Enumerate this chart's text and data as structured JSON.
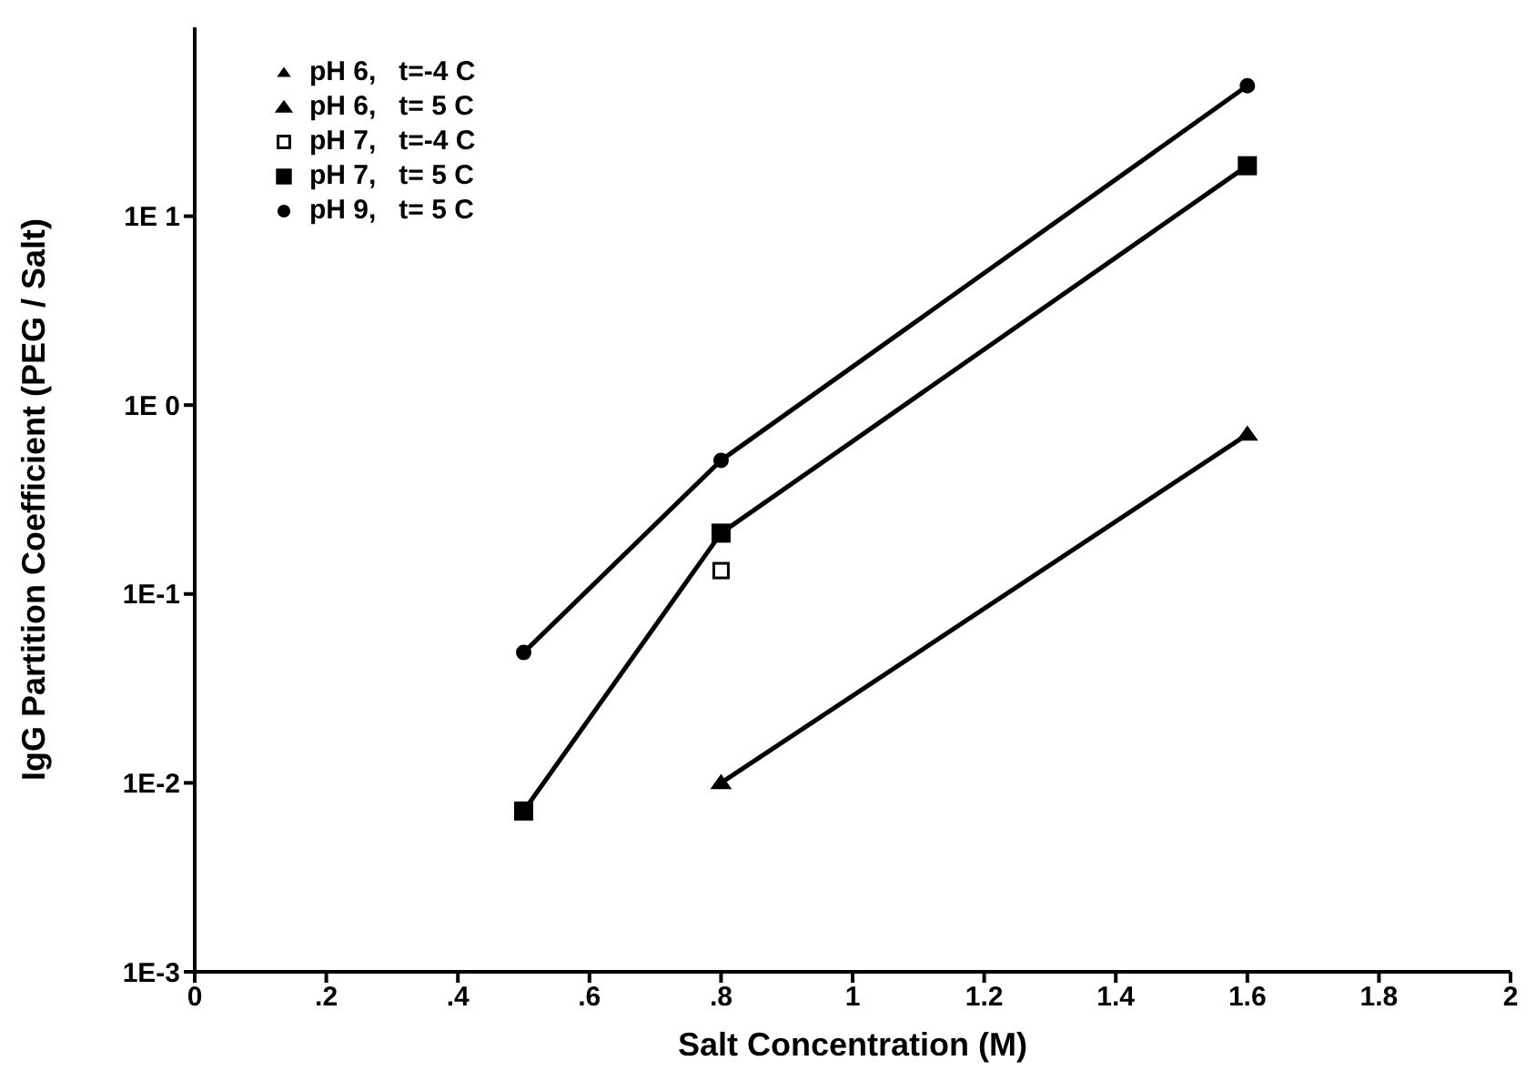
{
  "chart_data": {
    "type": "line",
    "xlabel": "Salt Concentration (M)",
    "ylabel": "IgG Partition Coefficient (PEG / Salt)",
    "log": "y",
    "grid": false,
    "legend": "top left",
    "line_style": "solid",
    "xlim": [
      0,
      2
    ],
    "xticks": [
      0,
      {
        "value": 0.2,
        "label": ".2"
      },
      {
        "value": 0.4,
        "label": ".4"
      },
      {
        "value": 0.6,
        "label": ".6"
      },
      {
        "value": 0.8,
        "label": ".8"
      },
      1,
      1.2,
      1.4,
      1.6,
      1.8,
      2
    ],
    "ylim": [
      0.001,
      100
    ],
    "yticks": [
      {
        "value": 0.001,
        "label": "1E-3"
      },
      {
        "value": 0.01,
        "label": "1E-2"
      },
      {
        "value": 0.1,
        "label": "1E-1"
      },
      {
        "value": 1,
        "label": "1E 0"
      },
      {
        "value": 10,
        "label": "1E 1"
      }
    ],
    "series": [
      {
        "name": "pH 6,   t=-4 C",
        "color": "#000000",
        "marker": "triangle"
      },
      {
        "name": "pH 6,   t= 5 C",
        "color": "#000000",
        "marker": "triangle",
        "x": [
          0.8,
          1.6
        ],
        "values": [
          0.01,
          0.7
        ]
      },
      {
        "name": "pH 7,   t=-4 C",
        "color": "#000000",
        "marker": "square",
        "x": [
          0.8
        ],
        "values": [
          0.133
        ]
      },
      {
        "name": "pH 7,   t= 5 C",
        "color": "#000000",
        "marker": "square",
        "x": [
          0.5,
          0.8,
          1.6
        ],
        "values": [
          0.0071,
          0.21,
          18.5
        ]
      },
      {
        "name": "pH 9,   t= 5 C",
        "color": "#000000",
        "marker": "circle",
        "x": [
          0.5,
          0.8,
          1.6
        ],
        "values": [
          0.049,
          0.51,
          49
        ]
      }
    ]
  }
}
